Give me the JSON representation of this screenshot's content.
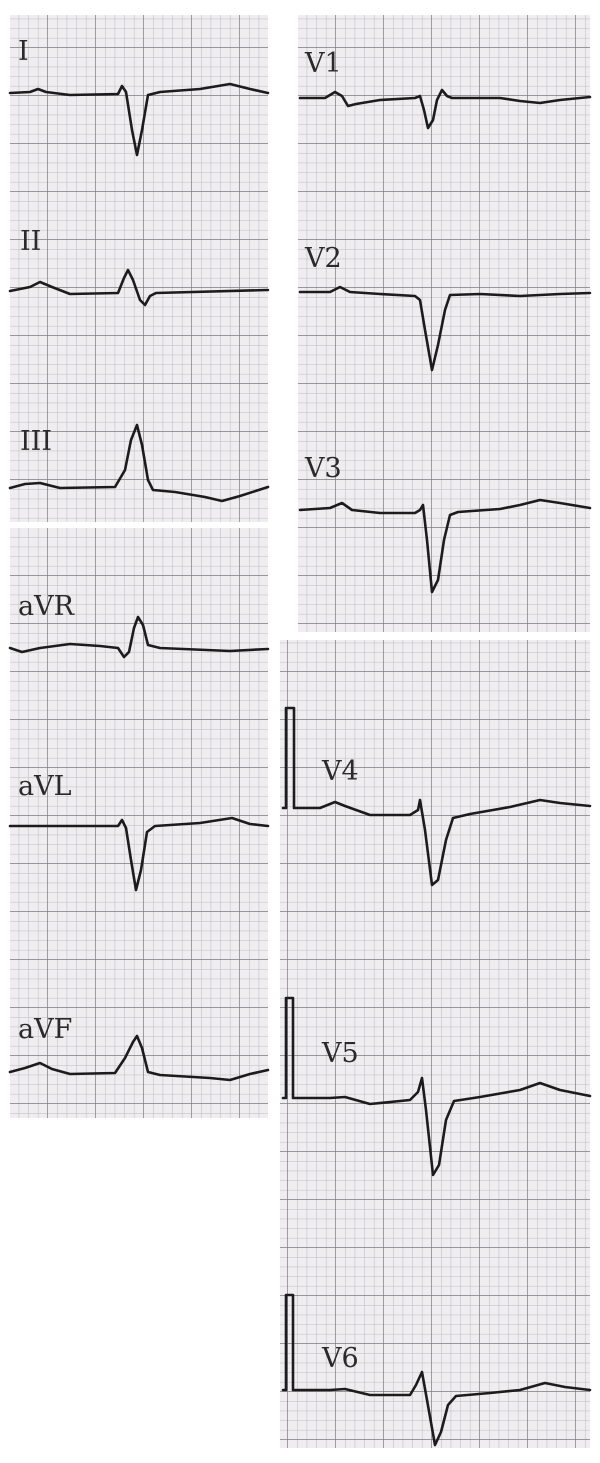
{
  "panels": [
    {
      "leads": [
        {
          "label": "I"
        },
        {
          "label": "II"
        },
        {
          "label": "III"
        }
      ]
    },
    {
      "leads": [
        {
          "label": "aVR"
        },
        {
          "label": "aVL"
        },
        {
          "label": "aVF"
        }
      ]
    },
    {
      "leads": [
        {
          "label": "V1"
        },
        {
          "label": "V2"
        },
        {
          "label": "V3"
        }
      ]
    },
    {
      "leads": [
        {
          "label": "V4"
        },
        {
          "label": "V5"
        },
        {
          "label": "V6"
        }
      ]
    }
  ],
  "colors": {
    "paper": "#efedf0",
    "grid_minor": "#bdb9bf",
    "grid_major": "#7d7a80",
    "trace": "#1c1c1c"
  }
}
